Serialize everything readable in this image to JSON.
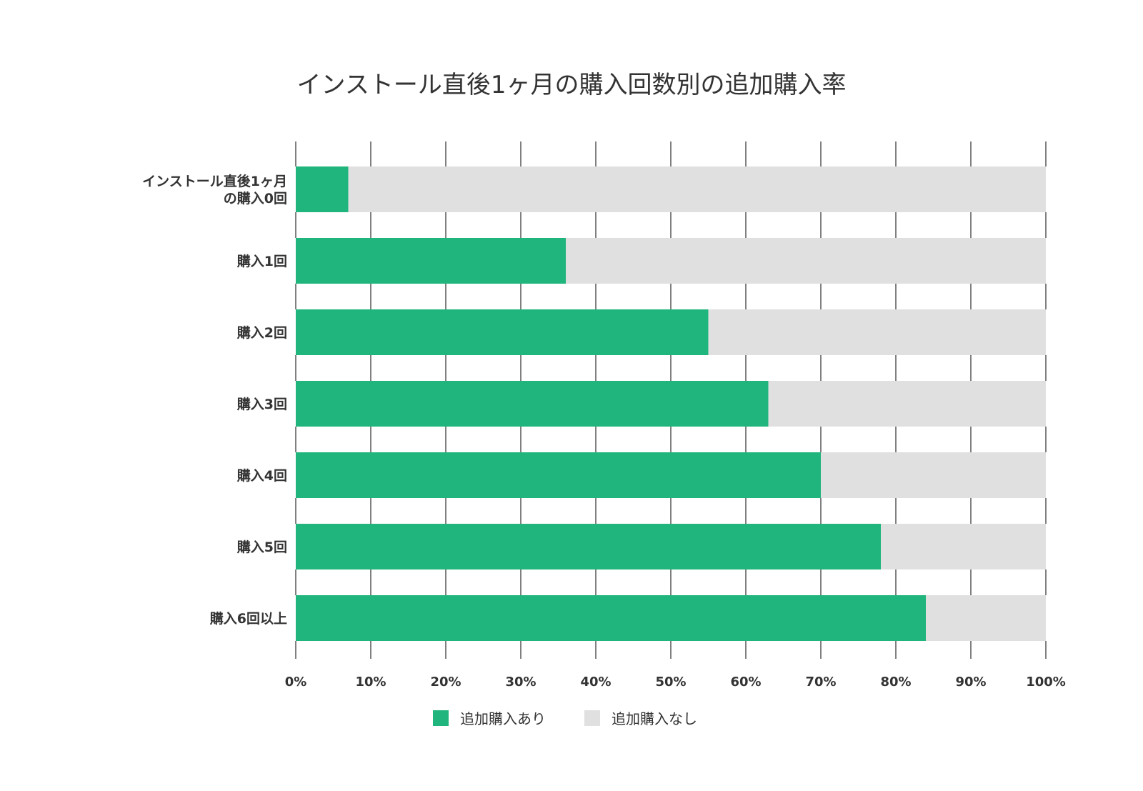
{
  "chart_data": {
    "type": "bar",
    "orientation": "horizontal",
    "stacked": true,
    "title": "インストール直後1ヶ月の購入回数別の追加購入率",
    "xlabel": "",
    "ylabel": "",
    "xlim": [
      0,
      100
    ],
    "x_ticks": [
      "0%",
      "10%",
      "20%",
      "30%",
      "40%",
      "50%",
      "60%",
      "70%",
      "80%",
      "90%",
      "100%"
    ],
    "grid": true,
    "legend_position": "bottom",
    "categories": [
      [
        "インストール直後1ヶ月",
        "の購入0回"
      ],
      [
        "購入1回"
      ],
      [
        "購入2回"
      ],
      [
        "購入3回"
      ],
      [
        "購入4回"
      ],
      [
        "購入5回"
      ],
      [
        "購入6回以上"
      ]
    ],
    "series": [
      {
        "name": "追加購入あり",
        "color": "#1fb57c",
        "values": [
          7,
          36,
          55,
          63,
          70,
          78,
          84
        ]
      },
      {
        "name": "追加購入なし",
        "color": "#e0e0e0",
        "values": [
          93,
          64,
          45,
          37,
          30,
          22,
          16
        ]
      }
    ]
  }
}
